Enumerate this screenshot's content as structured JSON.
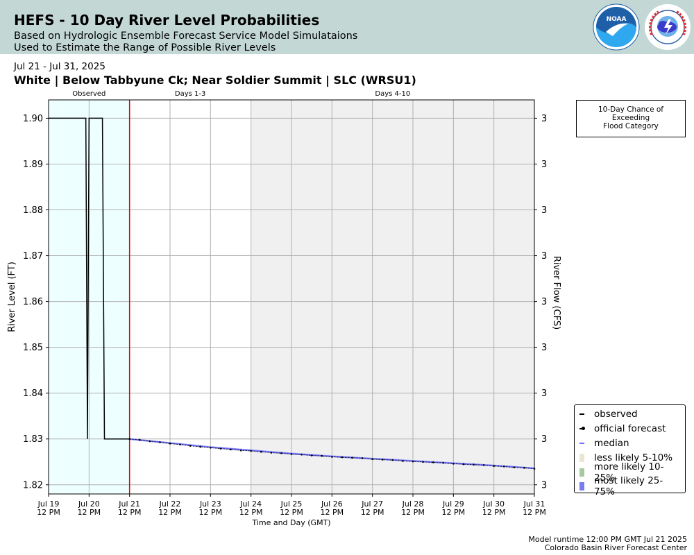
{
  "header": {
    "title": "HEFS - 10 Day River Level Probabilities",
    "subtitle_line1": "Based on Hydrologic Ensemble Forecast Service Model Simulataions",
    "subtitle_line2": "Used to Estimate the Range of Possible River Levels",
    "background_color": "#c3d8d5",
    "logos": [
      "noaa-logo",
      "national-weather-service-logo"
    ]
  },
  "date_range": "Jul 21 - Jul 31, 2025",
  "station_title": "White | Below Tabbyune Ck; Near Soldier Summit | SLC (WRSU1)",
  "flood_box": {
    "line1": "10-Day Chance of",
    "line2": "Exceeding",
    "line3": "Flood Category"
  },
  "legend": {
    "items": [
      {
        "label": "observed",
        "color": "#000000",
        "style": "line"
      },
      {
        "label": "official forecast",
        "color": "#000000",
        "style": "dotline"
      },
      {
        "label": "median",
        "color": "#6b6bff",
        "style": "line"
      },
      {
        "label": "less likely 5-10%",
        "color": "#ebe5d6",
        "style": "bar"
      },
      {
        "label": "more likely 10-25%",
        "color": "#aac8a0",
        "style": "bar"
      },
      {
        "label": "most likely 25-75%",
        "color": "#7b7bf0",
        "style": "bar"
      }
    ]
  },
  "footer": {
    "line1": "Model runtime 12:00 PM GMT Jul 21 2025",
    "line2": "Colorado Basin River Forecast Center"
  },
  "chart_data": {
    "type": "line",
    "xlabel": "Time and Day (GMT)",
    "ylabel": "River Level (FT)",
    "y2label": "River Flow (CFS)",
    "ylim": [
      1.818,
      1.904
    ],
    "y_ticks": [
      1.82,
      1.83,
      1.84,
      1.85,
      1.86,
      1.87,
      1.88,
      1.89,
      1.9
    ],
    "y2_tick_labels": [
      "3",
      "3",
      "3",
      "3",
      "3",
      "3",
      "3",
      "3",
      "3"
    ],
    "x_range_days": [
      "2025-07-19 12:00",
      "2025-07-31 12:00"
    ],
    "x_ticks": [
      {
        "day": "Jul 19",
        "time": "12 PM"
      },
      {
        "day": "Jul 20",
        "time": "12 PM"
      },
      {
        "day": "Jul 21",
        "time": "12 PM"
      },
      {
        "day": "Jul 22",
        "time": "12 PM"
      },
      {
        "day": "Jul 23",
        "time": "12 PM"
      },
      {
        "day": "Jul 24",
        "time": "12 PM"
      },
      {
        "day": "Jul 25",
        "time": "12 PM"
      },
      {
        "day": "Jul 26",
        "time": "12 PM"
      },
      {
        "day": "Jul 27",
        "time": "12 PM"
      },
      {
        "day": "Jul 28",
        "time": "12 PM"
      },
      {
        "day": "Jul 29",
        "time": "12 PM"
      },
      {
        "day": "Jul 30",
        "time": "12 PM"
      },
      {
        "day": "Jul 31",
        "time": "12 PM"
      }
    ],
    "regions": [
      {
        "label": "Observed",
        "start": 0,
        "end": 2,
        "color": "#eeffff"
      },
      {
        "label": "Days 1-3",
        "start": 2,
        "end": 5,
        "color": "#ffffff"
      },
      {
        "label": "Days 4-10",
        "start": 5,
        "end": 12,
        "color": "#f0f0f0"
      }
    ],
    "forecast_start_day": 2,
    "forecast_start_color": "#dd0000",
    "grid": true,
    "observed": {
      "color": "#000000",
      "x": [
        0,
        0.92,
        0.96,
        1.0,
        1.33,
        1.38,
        2.0
      ],
      "y": [
        1.9,
        1.9,
        1.83,
        1.9,
        1.9,
        1.83,
        1.83
      ]
    },
    "official_forecast": {
      "color": "#000000",
      "x": [
        2.0,
        2.25,
        2.5,
        2.75,
        3.0,
        3.25,
        3.5,
        3.75,
        4.0,
        4.25,
        4.5,
        4.75,
        5.0,
        5.25,
        5.5,
        5.75,
        6.0,
        6.25,
        6.5,
        6.75,
        7.0,
        7.25,
        7.5,
        7.75,
        8.0,
        8.25,
        8.5,
        8.75,
        9.0,
        9.25,
        9.5,
        9.75,
        10.0,
        10.25,
        10.5,
        10.75,
        11.0,
        11.25,
        11.5,
        11.75,
        12.0
      ],
      "y": [
        1.83,
        1.8298,
        1.8295,
        1.8293,
        1.829,
        1.8288,
        1.8285,
        1.8283,
        1.8281,
        1.8279,
        1.8277,
        1.8275,
        1.8274,
        1.8272,
        1.827,
        1.8269,
        1.8267,
        1.8266,
        1.8264,
        1.8263,
        1.8261,
        1.826,
        1.8259,
        1.8258,
        1.8256,
        1.8255,
        1.8254,
        1.8252,
        1.8251,
        1.825,
        1.8249,
        1.8248,
        1.8246,
        1.8245,
        1.8244,
        1.8243,
        1.8241,
        1.824,
        1.8238,
        1.8237,
        1.8235
      ]
    },
    "median": {
      "color": "#6b6bff",
      "x": [
        2,
        3,
        4,
        5,
        6,
        7,
        8,
        9,
        10,
        11,
        12
      ],
      "y": [
        1.83,
        1.8291,
        1.8282,
        1.8275,
        1.8268,
        1.8262,
        1.8257,
        1.8252,
        1.8247,
        1.8242,
        1.8236
      ]
    },
    "band_25_75": {
      "color": "#7b7bf0",
      "x": [
        2,
        3,
        4,
        5,
        6,
        7,
        8,
        9,
        10,
        11,
        12
      ],
      "low": [
        1.8298,
        1.8289,
        1.828,
        1.8273,
        1.8266,
        1.826,
        1.8255,
        1.825,
        1.8245,
        1.824,
        1.8234
      ],
      "high": [
        1.8302,
        1.8293,
        1.8284,
        1.8277,
        1.827,
        1.8264,
        1.8259,
        1.8254,
        1.8249,
        1.8244,
        1.8238
      ]
    }
  }
}
